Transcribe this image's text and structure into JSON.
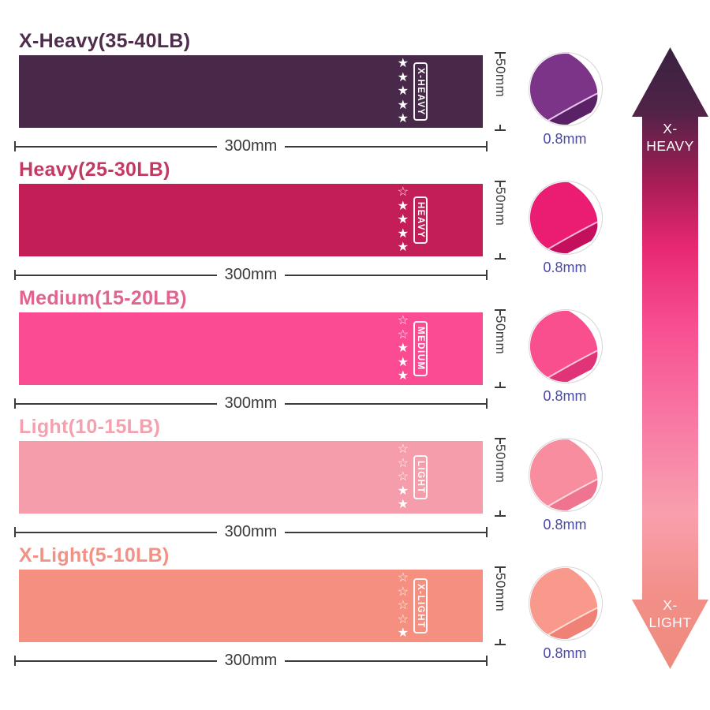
{
  "icons": {
    "star_filled": "★",
    "star_outline": "☆"
  },
  "colors": {
    "dimension_text": "#3b3b3b",
    "thickness_text": "#4a49a8",
    "star_color": "#ffffff"
  },
  "bands": [
    {
      "title": "X-Heavy(35-40LB)",
      "tag": "X-HEAVY",
      "stars_filled": 5,
      "stars_total": 5,
      "length": "300mm",
      "width": "50mm",
      "thickness": "0.8mm",
      "band_color": "#49294a",
      "title_color": "#4e2d4c",
      "fold": {
        "main": "#7b3488",
        "shade": "#5a2166",
        "edge": "#e8c7ef"
      }
    },
    {
      "title": "Heavy(25-30LB)",
      "tag": "HEAVY",
      "stars_filled": 4,
      "stars_total": 5,
      "length": "300mm",
      "width": "50mm",
      "thickness": "0.8mm",
      "band_color": "#c41e59",
      "title_color": "#c23a63",
      "fold": {
        "main": "#ea1d72",
        "shade": "#c40f5c",
        "edge": "#ffb9d6"
      }
    },
    {
      "title": "Medium(15-20LB)",
      "tag": "MEDIUM",
      "stars_filled": 3,
      "stars_total": 5,
      "length": "300mm",
      "width": "50mm",
      "thickness": "0.8mm",
      "band_color": "#fb4b92",
      "title_color": "#e26390",
      "fold": {
        "main": "#fa4f8e",
        "shade": "#e03378",
        "edge": "#ffc9da"
      }
    },
    {
      "title": "Light(10-15LB)",
      "tag": "LIGHT",
      "stars_filled": 2,
      "stars_total": 5,
      "length": "300mm",
      "width": "50mm",
      "thickness": "0.8mm",
      "band_color": "#f69dab",
      "title_color": "#f3a1ae",
      "fold": {
        "main": "#f88da0",
        "shade": "#ee7490",
        "edge": "#ffd9de"
      }
    },
    {
      "title": "X-Light(5-10LB)",
      "tag": "X-LIGHT",
      "stars_filled": 1,
      "stars_total": 5,
      "length": "300mm",
      "width": "50mm",
      "thickness": "0.8mm",
      "band_color": "#f58f80",
      "title_color": "#f29186",
      "fold": {
        "main": "#f8998c",
        "shade": "#ef8176",
        "edge": "#ffdcd4"
      }
    }
  ],
  "scale_arrow": {
    "top_line1": "X-",
    "top_line2": "HEAVY",
    "bottom_line1": "X-",
    "bottom_line2": "LIGHT",
    "gradient": [
      "#3a2140",
      "#4f2347",
      "#a81d55",
      "#e72870",
      "#f84f91",
      "#f878a4",
      "#f99fad",
      "#f28f88",
      "#ee8b7e"
    ],
    "gradient_offsets": [
      0,
      10,
      22,
      32,
      45,
      60,
      75,
      88,
      100
    ]
  }
}
